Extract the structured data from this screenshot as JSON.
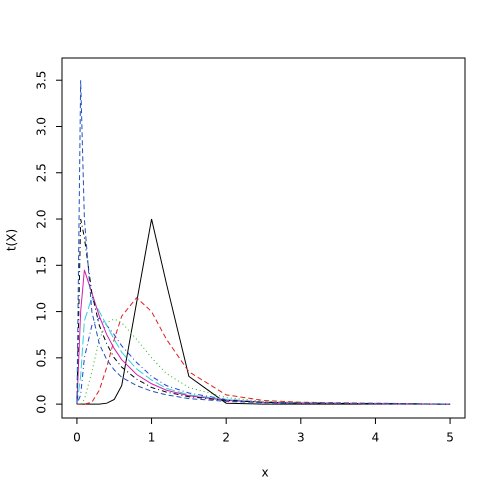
{
  "chart_data": {
    "type": "line",
    "x_label": "x",
    "y_label": "t(X)",
    "x": [
      0,
      0.05,
      0.1,
      0.2,
      0.3,
      0.4,
      0.5,
      0.6,
      0.8,
      1.0,
      1.2,
      1.5,
      2,
      2.5,
      3,
      4,
      5
    ],
    "series": [
      {
        "color": "#000000",
        "line_style": "solid",
        "values": [
          0,
          0,
          0,
          0,
          0,
          0.01,
          0.05,
          0.2,
          1.1,
          2.0,
          1.3,
          0.3,
          0.01,
          0,
          0,
          0,
          0
        ]
      },
      {
        "color": "#df2020",
        "line_style": "dashed",
        "values": [
          0,
          0,
          0,
          0.02,
          0.15,
          0.4,
          0.7,
          0.95,
          1.15,
          1.0,
          0.7,
          0.35,
          0.1,
          0.04,
          0.02,
          0.01,
          0
        ]
      },
      {
        "color": "#20b020",
        "line_style": "dotted",
        "values": [
          0,
          0,
          0.05,
          0.35,
          0.7,
          0.88,
          0.92,
          0.88,
          0.7,
          0.5,
          0.33,
          0.18,
          0.07,
          0.03,
          0.02,
          0.01,
          0
        ]
      },
      {
        "color": "#2040e0",
        "line_style": "dotdash",
        "values": [
          0,
          0.1,
          0.5,
          0.85,
          0.93,
          0.85,
          0.75,
          0.63,
          0.45,
          0.3,
          0.2,
          0.12,
          0.05,
          0.02,
          0.01,
          0.005,
          0
        ]
      },
      {
        "color": "#30d0d8",
        "line_style": "longdash",
        "values": [
          0,
          0.3,
          0.9,
          1.15,
          1.0,
          0.85,
          0.7,
          0.56,
          0.38,
          0.26,
          0.17,
          0.1,
          0.05,
          0.02,
          0.01,
          0.005,
          0
        ]
      },
      {
        "color": "#d020b0",
        "line_style": "solid",
        "values": [
          0,
          1.0,
          1.45,
          1.2,
          0.95,
          0.75,
          0.6,
          0.48,
          0.32,
          0.22,
          0.15,
          0.09,
          0.04,
          0.02,
          0.01,
          0.005,
          0
        ]
      },
      {
        "color": "#000000",
        "line_style": "dotdash",
        "values": [
          0,
          2.0,
          1.8,
          1.2,
          0.85,
          0.65,
          0.5,
          0.4,
          0.27,
          0.18,
          0.13,
          0.08,
          0.04,
          0.02,
          0.01,
          0.005,
          0
        ]
      },
      {
        "color": "#2050c0",
        "line_style": "dashed",
        "values": [
          0,
          3.5,
          2.0,
          1.0,
          0.65,
          0.48,
          0.37,
          0.29,
          0.2,
          0.14,
          0.1,
          0.06,
          0.03,
          0.015,
          0.01,
          0.005,
          0
        ]
      }
    ],
    "xlim": [
      -0.2,
      5.2
    ],
    "ylim": [
      -0.15,
      3.74
    ],
    "xticks": [
      0,
      1,
      2,
      3,
      4,
      5
    ],
    "yticks": [
      {
        "value": 0,
        "label": "0.0"
      },
      0.5,
      {
        "value": 1,
        "label": "1.0"
      },
      1.5,
      {
        "value": 2,
        "label": "2.0"
      },
      2.5,
      {
        "value": 3,
        "label": "3.0"
      },
      3.5
    ]
  }
}
